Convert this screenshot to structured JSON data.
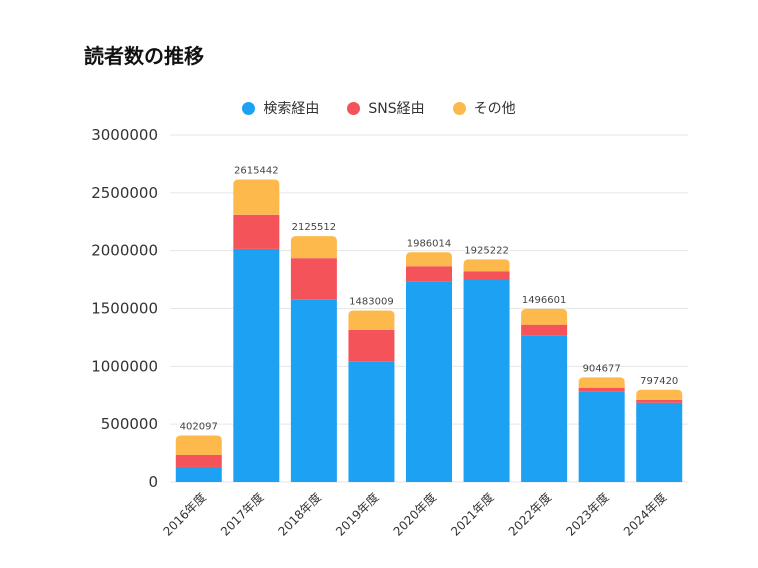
{
  "title": "読者数の推移",
  "chart_data": {
    "type": "bar",
    "stacked": true,
    "categories": [
      "2016年度",
      "2017年度",
      "2018年度",
      "2019年度",
      "2020年度",
      "2021年度",
      "2022年度",
      "2023年度",
      "2024年度"
    ],
    "series": [
      {
        "name": "検索経由",
        "color": "#1da1f2",
        "values": [
          130000,
          2015000,
          1580000,
          1040000,
          1735000,
          1755000,
          1265000,
          785000,
          685000
        ]
      },
      {
        "name": "SNS経由",
        "color": "#f5535a",
        "values": [
          105000,
          295000,
          355000,
          275000,
          130000,
          65000,
          95000,
          30000,
          25000
        ]
      },
      {
        "name": "その他",
        "color": "#fdb94c",
        "values": [
          167097,
          305442,
          190512,
          168009,
          121014,
          105222,
          136601,
          89677,
          87420
        ]
      }
    ],
    "totals": [
      "402097",
      "2615442",
      "2125512",
      "1483009",
      "1986014",
      "1925222",
      "1496601",
      "904677",
      "797420"
    ],
    "yticks": [
      "0",
      "500000",
      "1000000",
      "1500000",
      "2000000",
      "2500000",
      "3000000"
    ],
    "ylim": [
      0,
      3000000
    ],
    "grid": true,
    "legend_position": "top"
  }
}
